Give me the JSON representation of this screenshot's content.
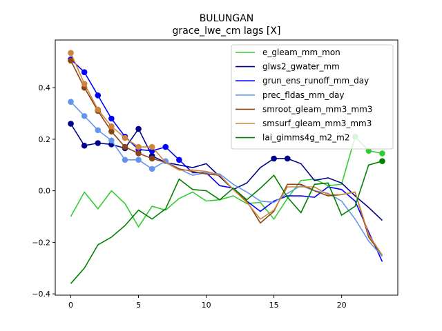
{
  "chart_data": {
    "type": "line",
    "title": "BULUNGAN",
    "subtitle": "grace_lwe_cm lags [X]",
    "xlabel": "",
    "ylabel": "",
    "xlim": [
      -1.15,
      24.15
    ],
    "ylim": [
      -0.405,
      0.585
    ],
    "xticks": [
      0,
      5,
      10,
      15,
      20
    ],
    "yticks": [
      -0.4,
      -0.2,
      0.0,
      0.2,
      0.4
    ],
    "ytick_labels": [
      "−0.4",
      "−0.2",
      "0.0",
      "0.2",
      "0.4"
    ],
    "grid": false,
    "legend_position": "upper-right",
    "x": [
      0,
      1,
      2,
      3,
      4,
      5,
      6,
      7,
      8,
      9,
      10,
      11,
      12,
      13,
      14,
      15,
      16,
      17,
      18,
      19,
      20,
      21,
      22,
      23
    ],
    "series": [
      {
        "name": "e_gleam_mm_mon",
        "color": "#32cd32",
        "values": [
          -0.1,
          -0.005,
          -0.07,
          0.0,
          -0.05,
          -0.14,
          -0.06,
          -0.075,
          -0.03,
          -0.005,
          -0.04,
          -0.035,
          -0.02,
          -0.05,
          -0.045,
          -0.11,
          -0.03,
          0.04,
          0.045,
          0.02,
          0.025,
          0.21,
          0.155,
          0.145
        ],
        "markers": [
          21,
          22,
          23
        ]
      },
      {
        "name": "glws2_gwater_mm",
        "color": "#00008b",
        "values": [
          0.26,
          0.175,
          0.185,
          0.18,
          0.165,
          0.24,
          0.135,
          0.11,
          0.1,
          0.09,
          0.105,
          0.055,
          0.005,
          0.03,
          0.09,
          0.125,
          0.125,
          0.105,
          0.04,
          0.05,
          0.03,
          -0.02,
          -0.065,
          -0.115
        ],
        "markers": [
          0,
          1,
          2,
          3,
          4,
          5,
          6,
          15,
          16
        ]
      },
      {
        "name": "grun_ens_runoff_mm_day",
        "color": "#0000ff",
        "values": [
          0.51,
          0.46,
          0.37,
          0.28,
          0.21,
          0.16,
          0.155,
          0.17,
          0.12,
          0.07,
          0.07,
          0.02,
          0.01,
          -0.04,
          -0.08,
          -0.04,
          -0.02,
          -0.02,
          -0.025,
          0.015,
          0.005,
          -0.04,
          -0.16,
          -0.275
        ],
        "markers": [
          0,
          1,
          2,
          3,
          4,
          5,
          6,
          7,
          8
        ]
      },
      {
        "name": "prec_fldas_mm_day",
        "color": "#6495ed",
        "values": [
          0.345,
          0.29,
          0.235,
          0.195,
          0.12,
          0.12,
          0.085,
          0.115,
          0.085,
          0.06,
          0.07,
          0.065,
          0.025,
          -0.005,
          -0.04,
          -0.045,
          -0.01,
          0.02,
          0.0,
          -0.01,
          -0.04,
          -0.11,
          -0.195,
          -0.255
        ],
        "markers": [
          0,
          1,
          2,
          3,
          4,
          5,
          6,
          7
        ]
      },
      {
        "name": "smroot_gleam_mm3_mm3",
        "color": "#8b4513",
        "values": [
          0.505,
          0.4,
          0.31,
          0.23,
          0.17,
          0.145,
          0.125,
          0.11,
          0.085,
          0.075,
          0.065,
          0.06,
          0.005,
          -0.04,
          -0.125,
          -0.08,
          0.025,
          0.025,
          0.0,
          -0.02,
          -0.015,
          -0.005,
          -0.18,
          -0.25
        ],
        "markers": [
          0,
          1,
          2,
          3,
          4,
          5,
          6
        ]
      },
      {
        "name": "smsurf_gleam_mm3_mm3",
        "color": "#cd853f",
        "values": [
          0.535,
          0.415,
          0.315,
          0.25,
          0.205,
          0.17,
          0.17,
          0.11,
          0.08,
          0.08,
          0.075,
          0.06,
          0.005,
          -0.045,
          -0.11,
          -0.075,
          0.015,
          0.015,
          0.015,
          -0.015,
          -0.015,
          -0.005,
          -0.17,
          -0.25
        ],
        "markers": [
          0,
          1,
          2,
          3,
          4,
          5,
          6
        ]
      },
      {
        "name": "lai_gimms4g_m2_m2",
        "color": "#008000",
        "values": [
          -0.36,
          -0.3,
          -0.21,
          -0.18,
          -0.135,
          -0.075,
          -0.11,
          -0.07,
          0.045,
          0.005,
          0.0,
          -0.035,
          0.01,
          -0.035,
          0.01,
          0.06,
          -0.025,
          -0.085,
          0.025,
          0.03,
          -0.095,
          -0.06,
          0.1,
          0.115
        ],
        "markers": [
          23
        ]
      }
    ]
  }
}
